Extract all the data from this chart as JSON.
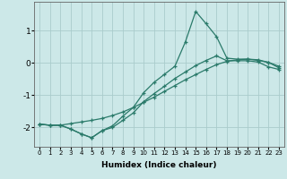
{
  "xlabel": "Humidex (Indice chaleur)",
  "bg_color": "#cce8e8",
  "grid_color": "#aacccc",
  "line_color": "#2a7a6a",
  "xlim": [
    -0.5,
    23.5
  ],
  "ylim": [
    -2.6,
    1.9
  ],
  "xticks": [
    0,
    1,
    2,
    3,
    4,
    5,
    6,
    7,
    8,
    9,
    10,
    11,
    12,
    13,
    14,
    15,
    16,
    17,
    18,
    19,
    20,
    21,
    22,
    23
  ],
  "yticks": [
    -2,
    -1,
    0,
    1
  ],
  "line1_x": [
    0,
    1,
    2,
    3,
    4,
    5,
    6,
    7,
    8,
    9,
    10,
    11,
    12,
    13,
    14,
    15,
    16,
    17,
    18,
    19,
    20,
    21,
    22,
    23
  ],
  "line1_y": [
    -1.9,
    -1.93,
    -1.93,
    -1.88,
    -1.83,
    -1.78,
    -1.72,
    -1.63,
    -1.52,
    -1.38,
    -1.22,
    -1.06,
    -0.88,
    -0.7,
    -0.52,
    -0.36,
    -0.2,
    -0.05,
    0.05,
    0.1,
    0.12,
    0.1,
    0.02,
    -0.1
  ],
  "line2_x": [
    0,
    1,
    2,
    3,
    4,
    5,
    6,
    7,
    8,
    9,
    10,
    11,
    12,
    13,
    14,
    15,
    16,
    17,
    18,
    19,
    20,
    21,
    22,
    23
  ],
  "line2_y": [
    -1.9,
    -1.93,
    -1.93,
    -2.05,
    -2.2,
    -2.32,
    -2.1,
    -1.95,
    -1.65,
    -1.38,
    -0.92,
    -0.6,
    -0.35,
    -0.1,
    0.65,
    1.6,
    1.22,
    0.82,
    0.15,
    0.12,
    0.12,
    0.08,
    0.02,
    -0.15
  ],
  "line3_x": [
    0,
    1,
    2,
    3,
    4,
    5,
    6,
    7,
    8,
    9,
    10,
    11,
    12,
    13,
    14,
    15,
    16,
    17,
    18,
    19,
    20,
    21,
    22,
    23
  ],
  "line3_y": [
    -1.9,
    -1.93,
    -1.93,
    -2.05,
    -2.2,
    -2.32,
    -2.1,
    -2.0,
    -1.78,
    -1.55,
    -1.2,
    -0.95,
    -0.72,
    -0.48,
    -0.28,
    -0.08,
    0.08,
    0.22,
    0.07,
    0.07,
    0.07,
    0.03,
    -0.12,
    -0.2
  ]
}
